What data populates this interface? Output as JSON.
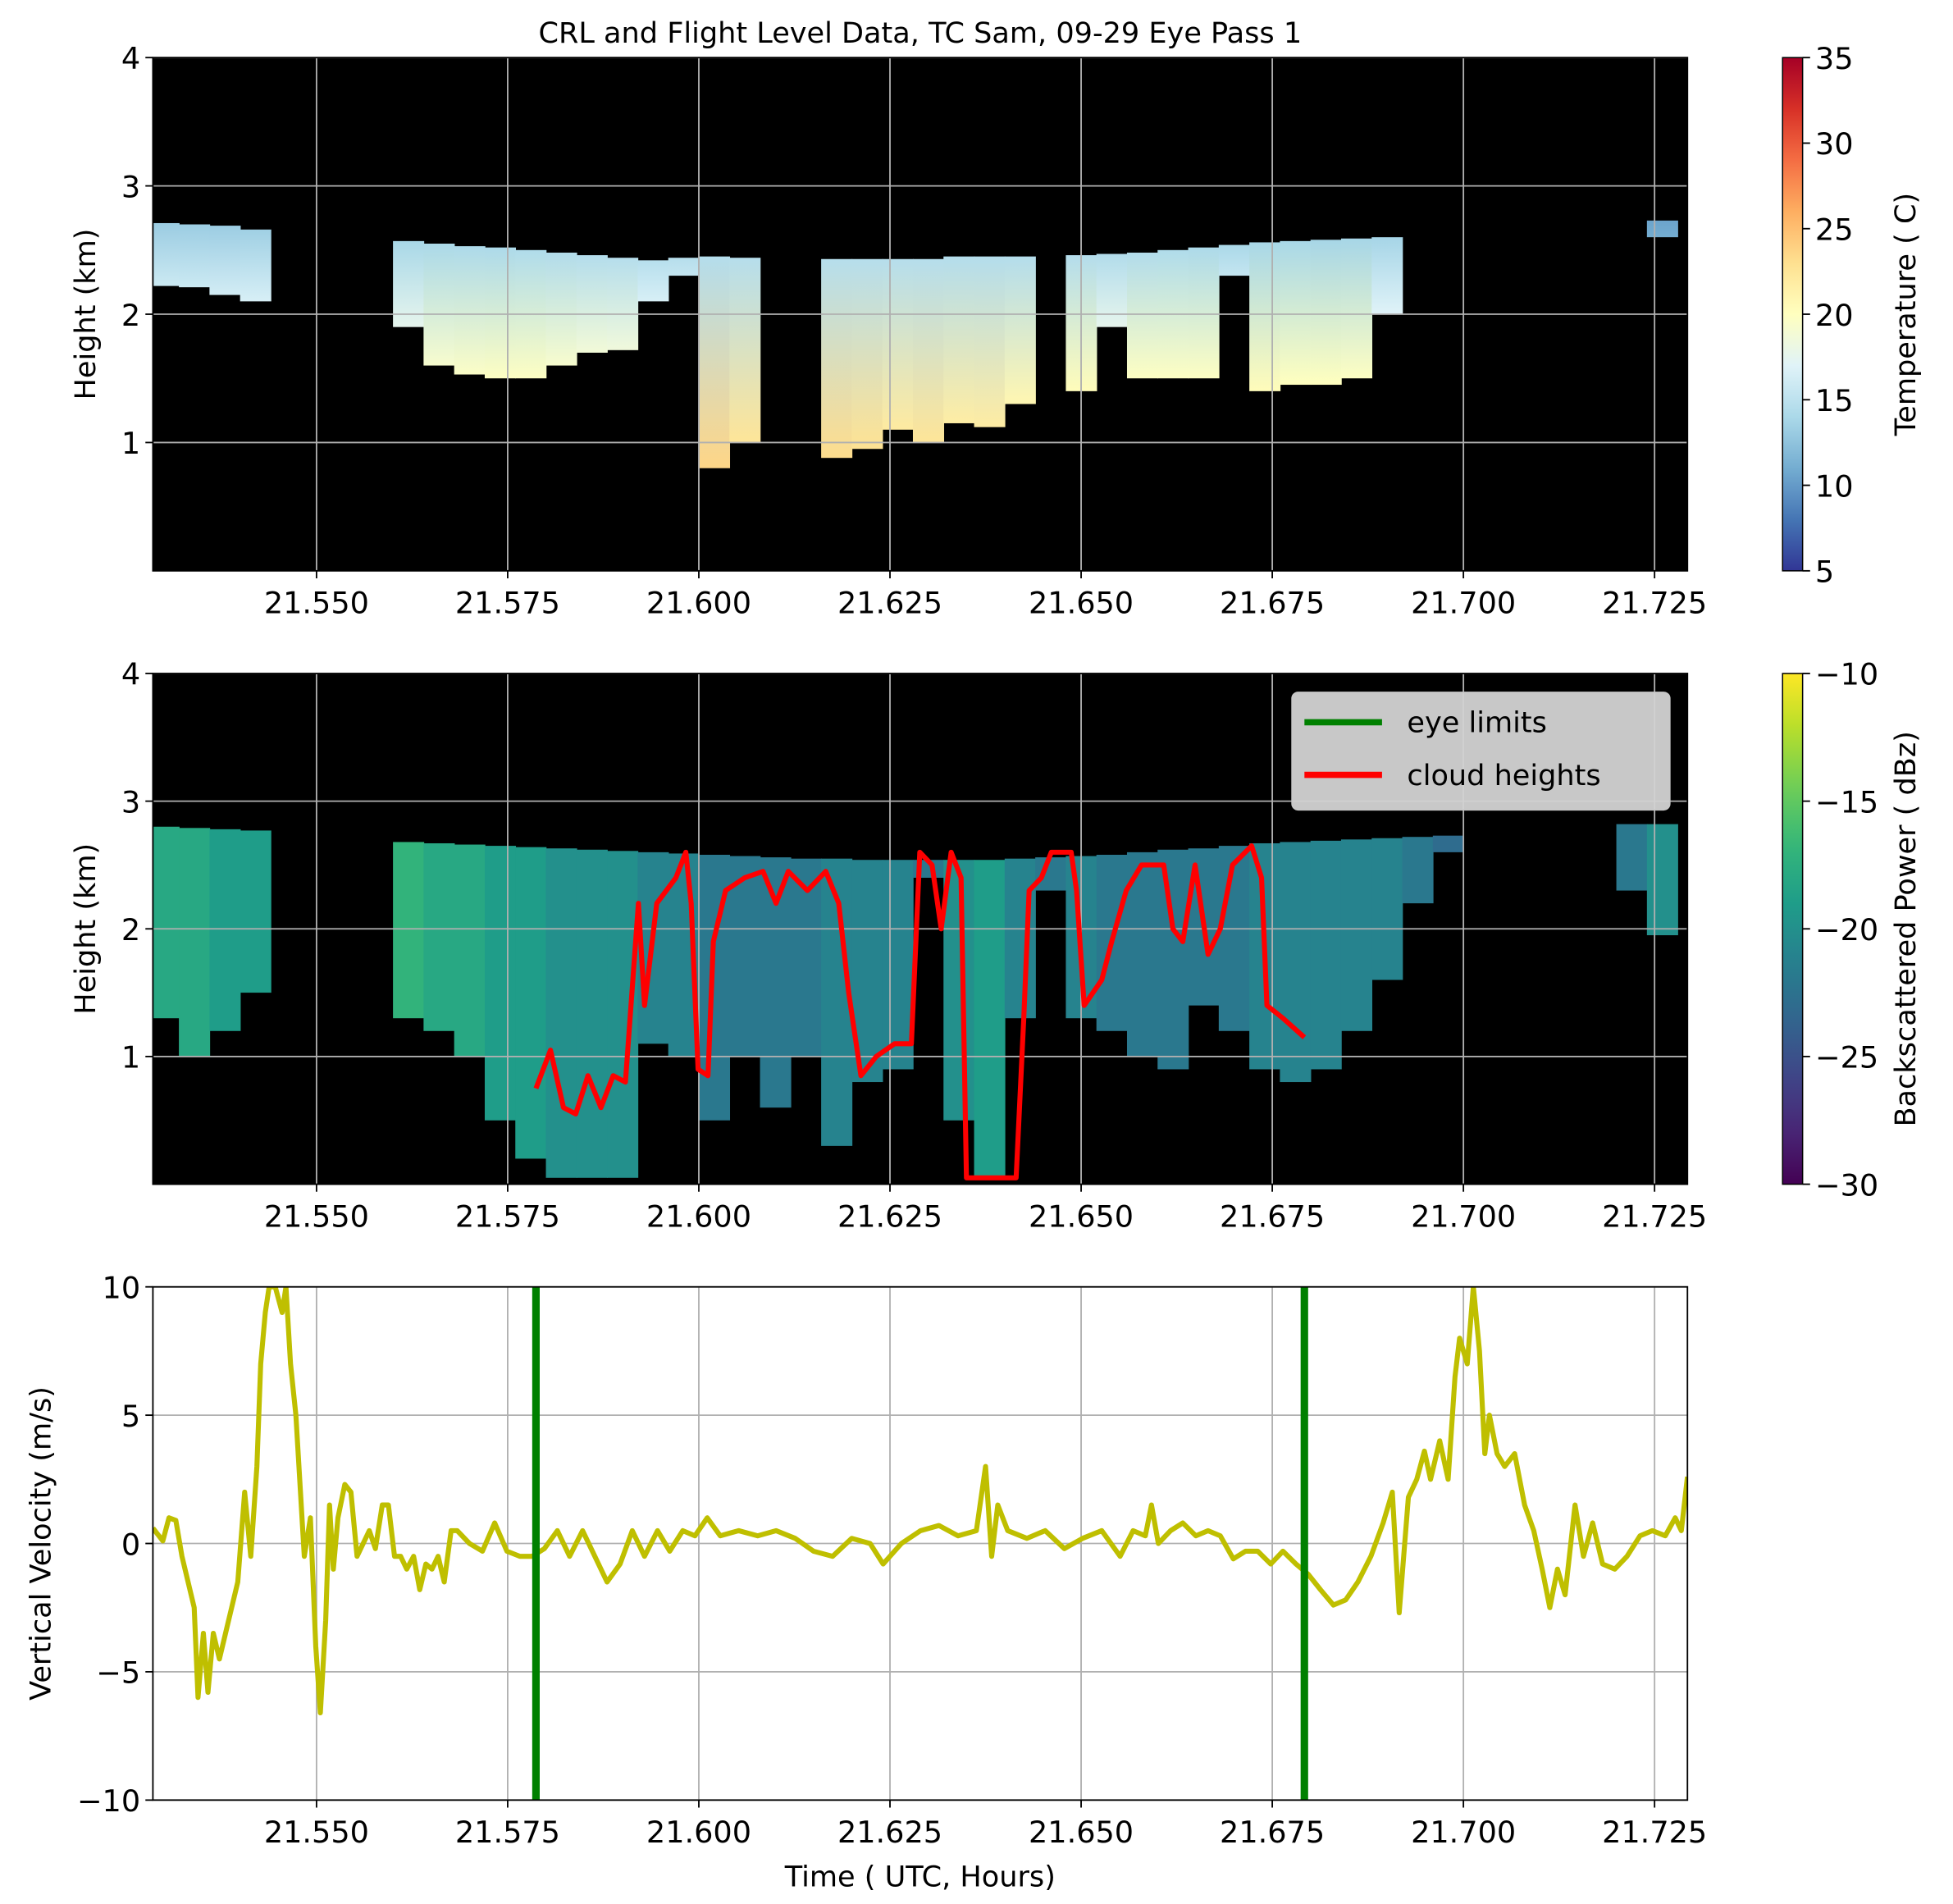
{
  "chart_data": [
    {
      "type": "curtain",
      "title": "CRL and Flight Level Data, TC Sam, 09-29 Eye Pass 1",
      "ylabel": "Height (km)",
      "xlim": [
        21.5286,
        21.7293
      ],
      "ylim": [
        0,
        4
      ],
      "yticks": [
        1,
        2,
        3,
        4
      ],
      "xticks": [
        {
          "value": 21.55,
          "label": "21.550"
        },
        {
          "value": 21.575,
          "label": "21.575"
        },
        {
          "value": 21.6,
          "label": "21.600"
        },
        {
          "value": 21.625,
          "label": "21.625"
        },
        {
          "value": 21.65,
          "label": "21.650"
        },
        {
          "value": 21.675,
          "label": "21.675"
        },
        {
          "value": 21.7,
          "label": "21.700"
        },
        {
          "value": 21.725,
          "label": "21.725"
        }
      ],
      "grid": true,
      "x": [
        21.53,
        21.534,
        21.538,
        21.542,
        21.546,
        21.55,
        21.554,
        21.558,
        21.562,
        21.566,
        21.57,
        21.574,
        21.578,
        21.582,
        21.586,
        21.59,
        21.594,
        21.598,
        21.602,
        21.606,
        21.61,
        21.614,
        21.618,
        21.622,
        21.626,
        21.63,
        21.634,
        21.638,
        21.642,
        21.646,
        21.65,
        21.654,
        21.658,
        21.662,
        21.666,
        21.67,
        21.674,
        21.678,
        21.682,
        21.686,
        21.69,
        21.694,
        21.698,
        21.702,
        21.706,
        21.71,
        21.714,
        21.718,
        21.722,
        21.726
      ],
      "top": [
        2.71,
        2.7,
        2.69,
        2.66,
        null,
        null,
        null,
        null,
        2.57,
        2.55,
        2.53,
        2.52,
        2.5,
        2.48,
        2.46,
        2.44,
        2.42,
        2.44,
        2.45,
        2.44,
        null,
        null,
        2.43,
        2.43,
        2.43,
        2.43,
        2.45,
        2.45,
        2.45,
        null,
        2.46,
        2.47,
        2.48,
        2.5,
        2.52,
        2.54,
        2.56,
        2.57,
        2.58,
        2.59,
        2.6,
        null,
        null,
        null,
        null,
        null,
        null,
        null,
        null,
        2.73
      ],
      "base": [
        2.22,
        2.21,
        2.15,
        2.1,
        null,
        null,
        null,
        null,
        1.9,
        1.6,
        1.53,
        1.5,
        1.5,
        1.6,
        1.7,
        1.72,
        2.1,
        2.3,
        0.8,
        1.0,
        null,
        null,
        0.88,
        0.95,
        1.1,
        1.0,
        1.15,
        1.12,
        1.3,
        null,
        1.4,
        1.9,
        1.5,
        1.5,
        1.5,
        2.3,
        1.4,
        1.45,
        1.45,
        1.5,
        2.0,
        null,
        null,
        null,
        null,
        null,
        null,
        null,
        null,
        2.6
      ],
      "top_values": [
        13.1,
        13.2,
        13.2,
        13.4,
        null,
        null,
        null,
        null,
        13.9,
        14.0,
        14.1,
        14.1,
        14.3,
        14.4,
        14.5,
        14.6,
        14.7,
        14.6,
        14.5,
        14.6,
        null,
        null,
        14.6,
        14.6,
        14.6,
        14.6,
        14.5,
        14.5,
        14.5,
        null,
        14.5,
        14.4,
        14.4,
        14.3,
        14.1,
        14.0,
        13.9,
        13.9,
        13.8,
        13.8,
        13.7,
        null,
        null,
        null,
        null,
        null,
        null,
        null,
        null,
        10.5
      ],
      "base_values": [
        15.8,
        15.8,
        16.2,
        16.5,
        null,
        null,
        null,
        null,
        17.6,
        19.2,
        19.6,
        19.8,
        19.8,
        19.2,
        18.7,
        18.5,
        16.5,
        15.4,
        23.6,
        22.5,
        null,
        null,
        23.2,
        22.8,
        22.0,
        22.5,
        21.7,
        21.8,
        20.9,
        null,
        20.3,
        17.6,
        19.8,
        19.8,
        19.8,
        15.4,
        20.3,
        20.0,
        20.0,
        19.8,
        17.0,
        null,
        null,
        null,
        null,
        null,
        null,
        null,
        null,
        11
      ],
      "colorbar": {
        "label": "Temperature ( C)",
        "colormap": "RdYlBu_r",
        "lim": [
          5,
          35
        ],
        "ticks": [
          5,
          10,
          15,
          20,
          25,
          30,
          35
        ]
      }
    },
    {
      "type": "curtain",
      "ylabel": "Height (km)",
      "xlim": [
        21.5286,
        21.7293
      ],
      "ylim": [
        0,
        4
      ],
      "yticks": [
        1,
        2,
        3,
        4
      ],
      "xticks": [
        {
          "value": 21.55,
          "label": "21.550"
        },
        {
          "value": 21.575,
          "label": "21.575"
        },
        {
          "value": 21.6,
          "label": "21.600"
        },
        {
          "value": 21.625,
          "label": "21.625"
        },
        {
          "value": 21.65,
          "label": "21.650"
        },
        {
          "value": 21.675,
          "label": "21.675"
        },
        {
          "value": 21.7,
          "label": "21.700"
        },
        {
          "value": 21.725,
          "label": "21.725"
        }
      ],
      "grid": true,
      "x": [
        21.53,
        21.534,
        21.538,
        21.542,
        21.546,
        21.55,
        21.554,
        21.558,
        21.562,
        21.566,
        21.57,
        21.574,
        21.578,
        21.582,
        21.586,
        21.59,
        21.594,
        21.598,
        21.602,
        21.606,
        21.61,
        21.614,
        21.618,
        21.622,
        21.626,
        21.63,
        21.634,
        21.638,
        21.642,
        21.646,
        21.65,
        21.654,
        21.658,
        21.662,
        21.666,
        21.67,
        21.674,
        21.678,
        21.682,
        21.686,
        21.69,
        21.694,
        21.698,
        21.702,
        21.706,
        21.71,
        21.714,
        21.718,
        21.722,
        21.726
      ],
      "top": [
        2.8,
        2.79,
        2.78,
        2.77,
        null,
        null,
        null,
        null,
        2.68,
        2.67,
        2.66,
        2.65,
        2.64,
        2.63,
        2.62,
        2.61,
        2.6,
        2.59,
        2.58,
        2.57,
        2.56,
        2.55,
        2.55,
        2.54,
        2.54,
        2.54,
        2.54,
        2.54,
        2.55,
        2.56,
        2.57,
        2.58,
        2.6,
        2.62,
        2.63,
        2.65,
        2.67,
        2.68,
        2.69,
        2.7,
        2.71,
        2.72,
        2.73,
        null,
        null,
        null,
        null,
        null,
        2.82,
        2.82
      ],
      "base": [
        1.3,
        1.0,
        1.2,
        1.5,
        null,
        null,
        null,
        null,
        1.3,
        1.2,
        1.0,
        0.5,
        0.2,
        0.05,
        0.05,
        0.05,
        1.1,
        1.0,
        0.5,
        1.0,
        0.6,
        1.0,
        0.3,
        0.8,
        0.9,
        2.4,
        0.5,
        0.05,
        1.3,
        2.3,
        1.3,
        1.2,
        1.0,
        0.9,
        1.4,
        1.2,
        0.9,
        0.8,
        0.9,
        1.2,
        1.6,
        2.2,
        2.6,
        null,
        null,
        null,
        null,
        null,
        2.3,
        1.95
      ],
      "top_values": [
        -18,
        -18,
        -19,
        -19,
        null,
        null,
        null,
        null,
        -17,
        -18,
        -18,
        -19,
        -19,
        -20,
        -20,
        -20,
        -21,
        -21,
        -22,
        -22,
        -22,
        -22,
        -21,
        -21,
        -21,
        -22,
        -20,
        -19,
        -21,
        -22,
        -21,
        -22,
        -22,
        -22,
        -22,
        -22,
        -21,
        -21,
        -21,
        -21,
        -21,
        -22,
        -23,
        null,
        null,
        null,
        null,
        null,
        -22,
        -20
      ],
      "colorbar": {
        "label": "Backscattered Power ( dBz)",
        "colormap": "viridis",
        "lim": [
          -30,
          -10
        ],
        "ticks": [
          {
            "value": -30,
            "label": "−30"
          },
          {
            "value": -25,
            "label": "−25"
          },
          {
            "value": -20,
            "label": "−20"
          },
          {
            "value": -15,
            "label": "−15"
          },
          {
            "value": -10,
            "label": "−10"
          }
        ]
      },
      "legend": "upper right",
      "series": [
        {
          "name": "eye limits",
          "color": "#008000",
          "vlines": [
            21.5787,
            21.6792
          ]
        },
        {
          "name": "cloud heights",
          "color": "#ff0000",
          "x": [
            21.5787,
            21.5806,
            21.5823,
            21.5839,
            21.5855,
            21.5872,
            21.5888,
            21.5904,
            21.5921,
            21.5929,
            21.5945,
            21.597,
            21.5983,
            21.599,
            21.5999,
            21.6012,
            21.6019,
            21.6035,
            21.606,
            21.6084,
            21.6101,
            21.6117,
            21.6142,
            21.6166,
            21.6183,
            21.6196,
            21.6212,
            21.6232,
            21.6256,
            21.6278,
            21.6289,
            21.6305,
            21.6317,
            21.633,
            21.6343,
            21.635,
            21.6396,
            21.6415,
            21.6425,
            21.6432,
            21.6448,
            21.6461,
            21.6487,
            21.6494,
            21.6504,
            21.6527,
            21.654,
            21.6559,
            21.6579,
            21.6608,
            21.662,
            21.6633,
            21.6649,
            21.6666,
            21.6682,
            21.6698,
            21.6723,
            21.6736,
            21.6743,
            21.6764,
            21.6792
          ],
          "values": [
            0.75,
            1.05,
            0.6,
            0.55,
            0.85,
            0.6,
            0.85,
            0.8,
            2.2,
            1.4,
            2.2,
            2.4,
            2.6,
            2.2,
            0.9,
            0.85,
            1.9,
            2.3,
            2.4,
            2.45,
            2.2,
            2.45,
            2.3,
            2.45,
            2.2,
            1.5,
            0.85,
            1.0,
            1.1,
            1.1,
            2.6,
            2.5,
            2.0,
            2.6,
            2.4,
            0.05,
            0.05,
            0.05,
            1.3,
            2.3,
            2.4,
            2.6,
            2.6,
            2.3,
            1.4,
            1.6,
            1.9,
            2.3,
            2.5,
            2.5,
            2.0,
            1.9,
            2.5,
            1.8,
            2.0,
            2.5,
            2.65,
            2.4,
            1.4,
            1.3,
            1.15
          ]
        }
      ]
    },
    {
      "type": "line",
      "xlabel": "Time ( UTC, Hours)",
      "ylabel": "Vertical Velocity (m/s)",
      "color": "#bfbf00",
      "xlim": [
        21.5286,
        21.7293
      ],
      "ylim": [
        -10,
        10
      ],
      "yticks": [
        {
          "value": -10,
          "label": "−10"
        },
        {
          "value": -5,
          "label": "−5"
        },
        0,
        5,
        10
      ],
      "xticks": [
        {
          "value": 21.55,
          "label": "21.550"
        },
        {
          "value": 21.575,
          "label": "21.575"
        },
        {
          "value": 21.6,
          "label": "21.600"
        },
        {
          "value": 21.625,
          "label": "21.625"
        },
        {
          "value": 21.65,
          "label": "21.650"
        },
        {
          "value": 21.675,
          "label": "21.675"
        },
        {
          "value": 21.7,
          "label": "21.700"
        },
        {
          "value": 21.725,
          "label": "21.725"
        }
      ],
      "grid": true,
      "x": [
        21.5286,
        21.5299,
        21.5307,
        21.5316,
        21.5324,
        21.5332,
        21.534,
        21.5345,
        21.5352,
        21.5358,
        21.5365,
        21.5373,
        21.5381,
        21.5389,
        21.5397,
        21.5406,
        21.5414,
        21.5422,
        21.5427,
        21.5433,
        21.5438,
        21.5446,
        21.5455,
        21.546,
        21.5466,
        21.5473,
        21.5479,
        21.5484,
        21.5492,
        21.5499,
        21.5505,
        21.5512,
        21.5517,
        21.5522,
        21.5528,
        21.5537,
        21.5545,
        21.5553,
        21.5561,
        21.5569,
        21.5577,
        21.5586,
        21.5594,
        21.5602,
        21.561,
        21.5618,
        21.5627,
        21.5635,
        21.5643,
        21.5651,
        21.5659,
        21.5667,
        21.5676,
        21.5684,
        21.57,
        21.5717,
        21.5733,
        21.5749,
        21.5766,
        21.5782,
        21.5798,
        21.5815,
        21.5831,
        21.5848,
        21.5864,
        21.588,
        21.5897,
        21.5913,
        21.5929,
        21.5946,
        21.5962,
        21.5979,
        21.5995,
        21.6011,
        21.6028,
        21.6052,
        21.6077,
        21.6101,
        21.6126,
        21.615,
        21.6175,
        21.62,
        21.6224,
        21.6241,
        21.6265,
        21.629,
        21.6314,
        21.6339,
        21.6363,
        21.6375,
        21.6383,
        21.6391,
        21.6404,
        21.6429,
        21.6453,
        21.6478,
        21.6502,
        21.6527,
        21.6551,
        21.6568,
        21.6584,
        21.6592,
        21.6601,
        21.6617,
        21.6633,
        21.665,
        21.6666,
        21.6682,
        21.6699,
        21.6715,
        21.6731,
        21.6748,
        21.6764,
        21.6781,
        21.6797,
        21.6813,
        21.683,
        21.6846,
        21.6862,
        21.6879,
        21.6895,
        21.6907,
        21.6916,
        21.6928,
        21.6939,
        21.6949,
        21.6957,
        21.6969,
        21.698,
        21.6989,
        21.6995,
        21.7005,
        21.7013,
        21.7021,
        21.7028,
        21.7034,
        21.7044,
        21.7054,
        21.7067,
        21.708,
        21.7092,
        21.7103,
        21.7113,
        21.7123,
        21.7133,
        21.7146,
        21.7157,
        21.7169,
        21.7182,
        21.7198,
        21.7214,
        21.7231,
        21.7247,
        21.7264,
        21.7277,
        21.7285,
        21.7293
      ],
      "values": [
        0.6,
        0.1,
        1.0,
        0.9,
        -0.5,
        -1.5,
        -2.5,
        -6,
        -3.5,
        -5.8,
        -3.5,
        -4.5,
        -3.5,
        -2.5,
        -1.5,
        2,
        -0.5,
        3,
        7,
        9,
        10,
        10,
        9,
        10,
        7,
        5,
        2,
        -0.5,
        1,
        -4,
        -6.6,
        -3,
        1.5,
        -1,
        1,
        2.3,
        2,
        -0.5,
        0,
        0.5,
        -0.2,
        1.5,
        1.5,
        -0.5,
        -0.5,
        -1,
        -0.5,
        -1.8,
        -0.8,
        -1,
        -0.5,
        -1.5,
        0.5,
        0.5,
        0,
        -0.3,
        0.8,
        -0.3,
        -0.5,
        -0.5,
        -0.2,
        0.5,
        -0.5,
        0.5,
        -0.5,
        -1.5,
        -0.8,
        0.5,
        -0.5,
        0.5,
        -0.3,
        0.5,
        0.3,
        1.0,
        0.3,
        0.5,
        0.3,
        0.5,
        0.2,
        -0.3,
        -0.5,
        0.2,
        0,
        -0.8,
        0,
        0.5,
        0.7,
        0.3,
        0.5,
        3,
        -0.5,
        1.5,
        0.5,
        0.2,
        0.5,
        -0.2,
        0.2,
        0.5,
        -0.5,
        0.5,
        0.3,
        1.5,
        0,
        0.5,
        0.8,
        0.3,
        0.5,
        0.3,
        -0.6,
        -0.3,
        -0.3,
        -0.8,
        -0.3,
        -0.8,
        -1.2,
        -1.8,
        -2.4,
        -2.2,
        -1.5,
        -0.5,
        0.8,
        2.0,
        -2.7,
        1.8,
        2.5,
        3.6,
        2.5,
        4.0,
        2.5,
        6.5,
        8.0,
        7.0,
        10,
        7.5,
        3.5,
        5.0,
        3.5,
        3.0,
        3.5,
        1.5,
        0.5,
        -1.0,
        -2.5,
        -1.0,
        -2.0,
        1.5,
        -0.5,
        0.8,
        -0.8,
        -1.0,
        -0.5,
        0.3,
        0.5,
        0.3,
        1.0,
        0.5,
        2.6
      ]
    }
  ]
}
